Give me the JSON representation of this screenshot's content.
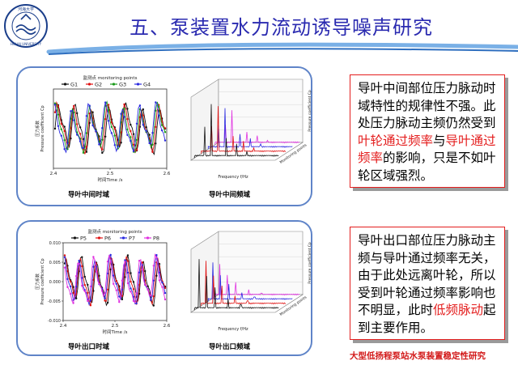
{
  "slide": {
    "title": "五、泵装置水力流动诱导噪声研究",
    "logo_text": "河海大学",
    "logo_en": "HOHAI UNIVERSITY",
    "footer": "大型低扬程泵站水泵装置稳定性研究",
    "colors": {
      "title": "#2a2ab0",
      "panel_border": "#5f84c8",
      "box_border": "#e41e1e",
      "emphasis": "#e41e1e",
      "footer": "#d21919"
    }
  },
  "panel1": {
    "time_caption": "导叶中间时域",
    "freq_caption": "导叶中间频域",
    "text_parts": [
      {
        "t": "导叶中间部位压力脉动时域特性的规律性不强。此处压力脉动主频仍然受到"
      },
      {
        "t": "叶轮通过频率",
        "red": true
      },
      {
        "t": "与"
      },
      {
        "t": "导叶通过频率",
        "red": true
      },
      {
        "t": "的影响，只是不如叶轮区域强烈。"
      }
    ]
  },
  "panel2": {
    "time_caption": "导叶出口时域",
    "freq_caption": "导叶出口频域",
    "text_parts": [
      {
        "t": "导叶出口部位压力脉动主频与导叶通过频率无关，由于此处远离叶轮，所以受到叶轮通过频率影响也不明显，此时"
      },
      {
        "t": "低频脉动",
        "red": true
      },
      {
        "t": "起到主要作用。"
      }
    ]
  },
  "chart_data": [
    {
      "type": "line",
      "legend_title": "监测点 monitoring points",
      "ylabel_cn": "压力系数",
      "ylabel": "Pressure coefficient Cp",
      "xlabel": "时间Time /s",
      "xlim": [
        2.4,
        2.6
      ],
      "xticks": [
        "2.4",
        "2.5",
        "2.6"
      ],
      "series": [
        {
          "name": "G1",
          "color": "#111111"
        },
        {
          "name": "G2",
          "color": "#e01010"
        },
        {
          "name": "G3",
          "color": "#1a9a1a"
        },
        {
          "name": "G4",
          "color": "#2a2ae0"
        }
      ]
    },
    {
      "type": "line",
      "chart_style": "3d-waterfall",
      "xlabel": "Frequency f/Hz",
      "zlabel": "Pressure coefficient Cp",
      "depth_label": "Monitoring points",
      "series_colors": [
        "#111111",
        "#e01010",
        "#2a2ae0",
        "#e030e0"
      ]
    },
    {
      "type": "line",
      "legend_title": "监测点 monitoring points",
      "ylabel_cn": "压力系数",
      "ylabel": "Pressure coefficient Cp",
      "xlabel": "时间Time /s",
      "xlim": [
        2.4,
        2.6
      ],
      "ylim": [
        -0.01,
        0.01
      ],
      "yticks": [
        "0.010",
        "0.005",
        "0.000",
        "-0.005",
        "-0.010"
      ],
      "xticks": [
        "2.4",
        "2.5",
        "2.6"
      ],
      "series": [
        {
          "name": "P5",
          "color": "#111111"
        },
        {
          "name": "P6",
          "color": "#e01010"
        },
        {
          "name": "P7",
          "color": "#2a2ae0"
        },
        {
          "name": "P8",
          "color": "#e030e0"
        }
      ]
    },
    {
      "type": "line",
      "chart_style": "3d-waterfall",
      "xlabel": "Frequency f/Hz",
      "zlabel": "Pressure coefficient Cp",
      "depth_label": "Monitoring points",
      "series_colors": [
        "#111111",
        "#e01010",
        "#2a2ae0",
        "#e030e0"
      ]
    }
  ]
}
